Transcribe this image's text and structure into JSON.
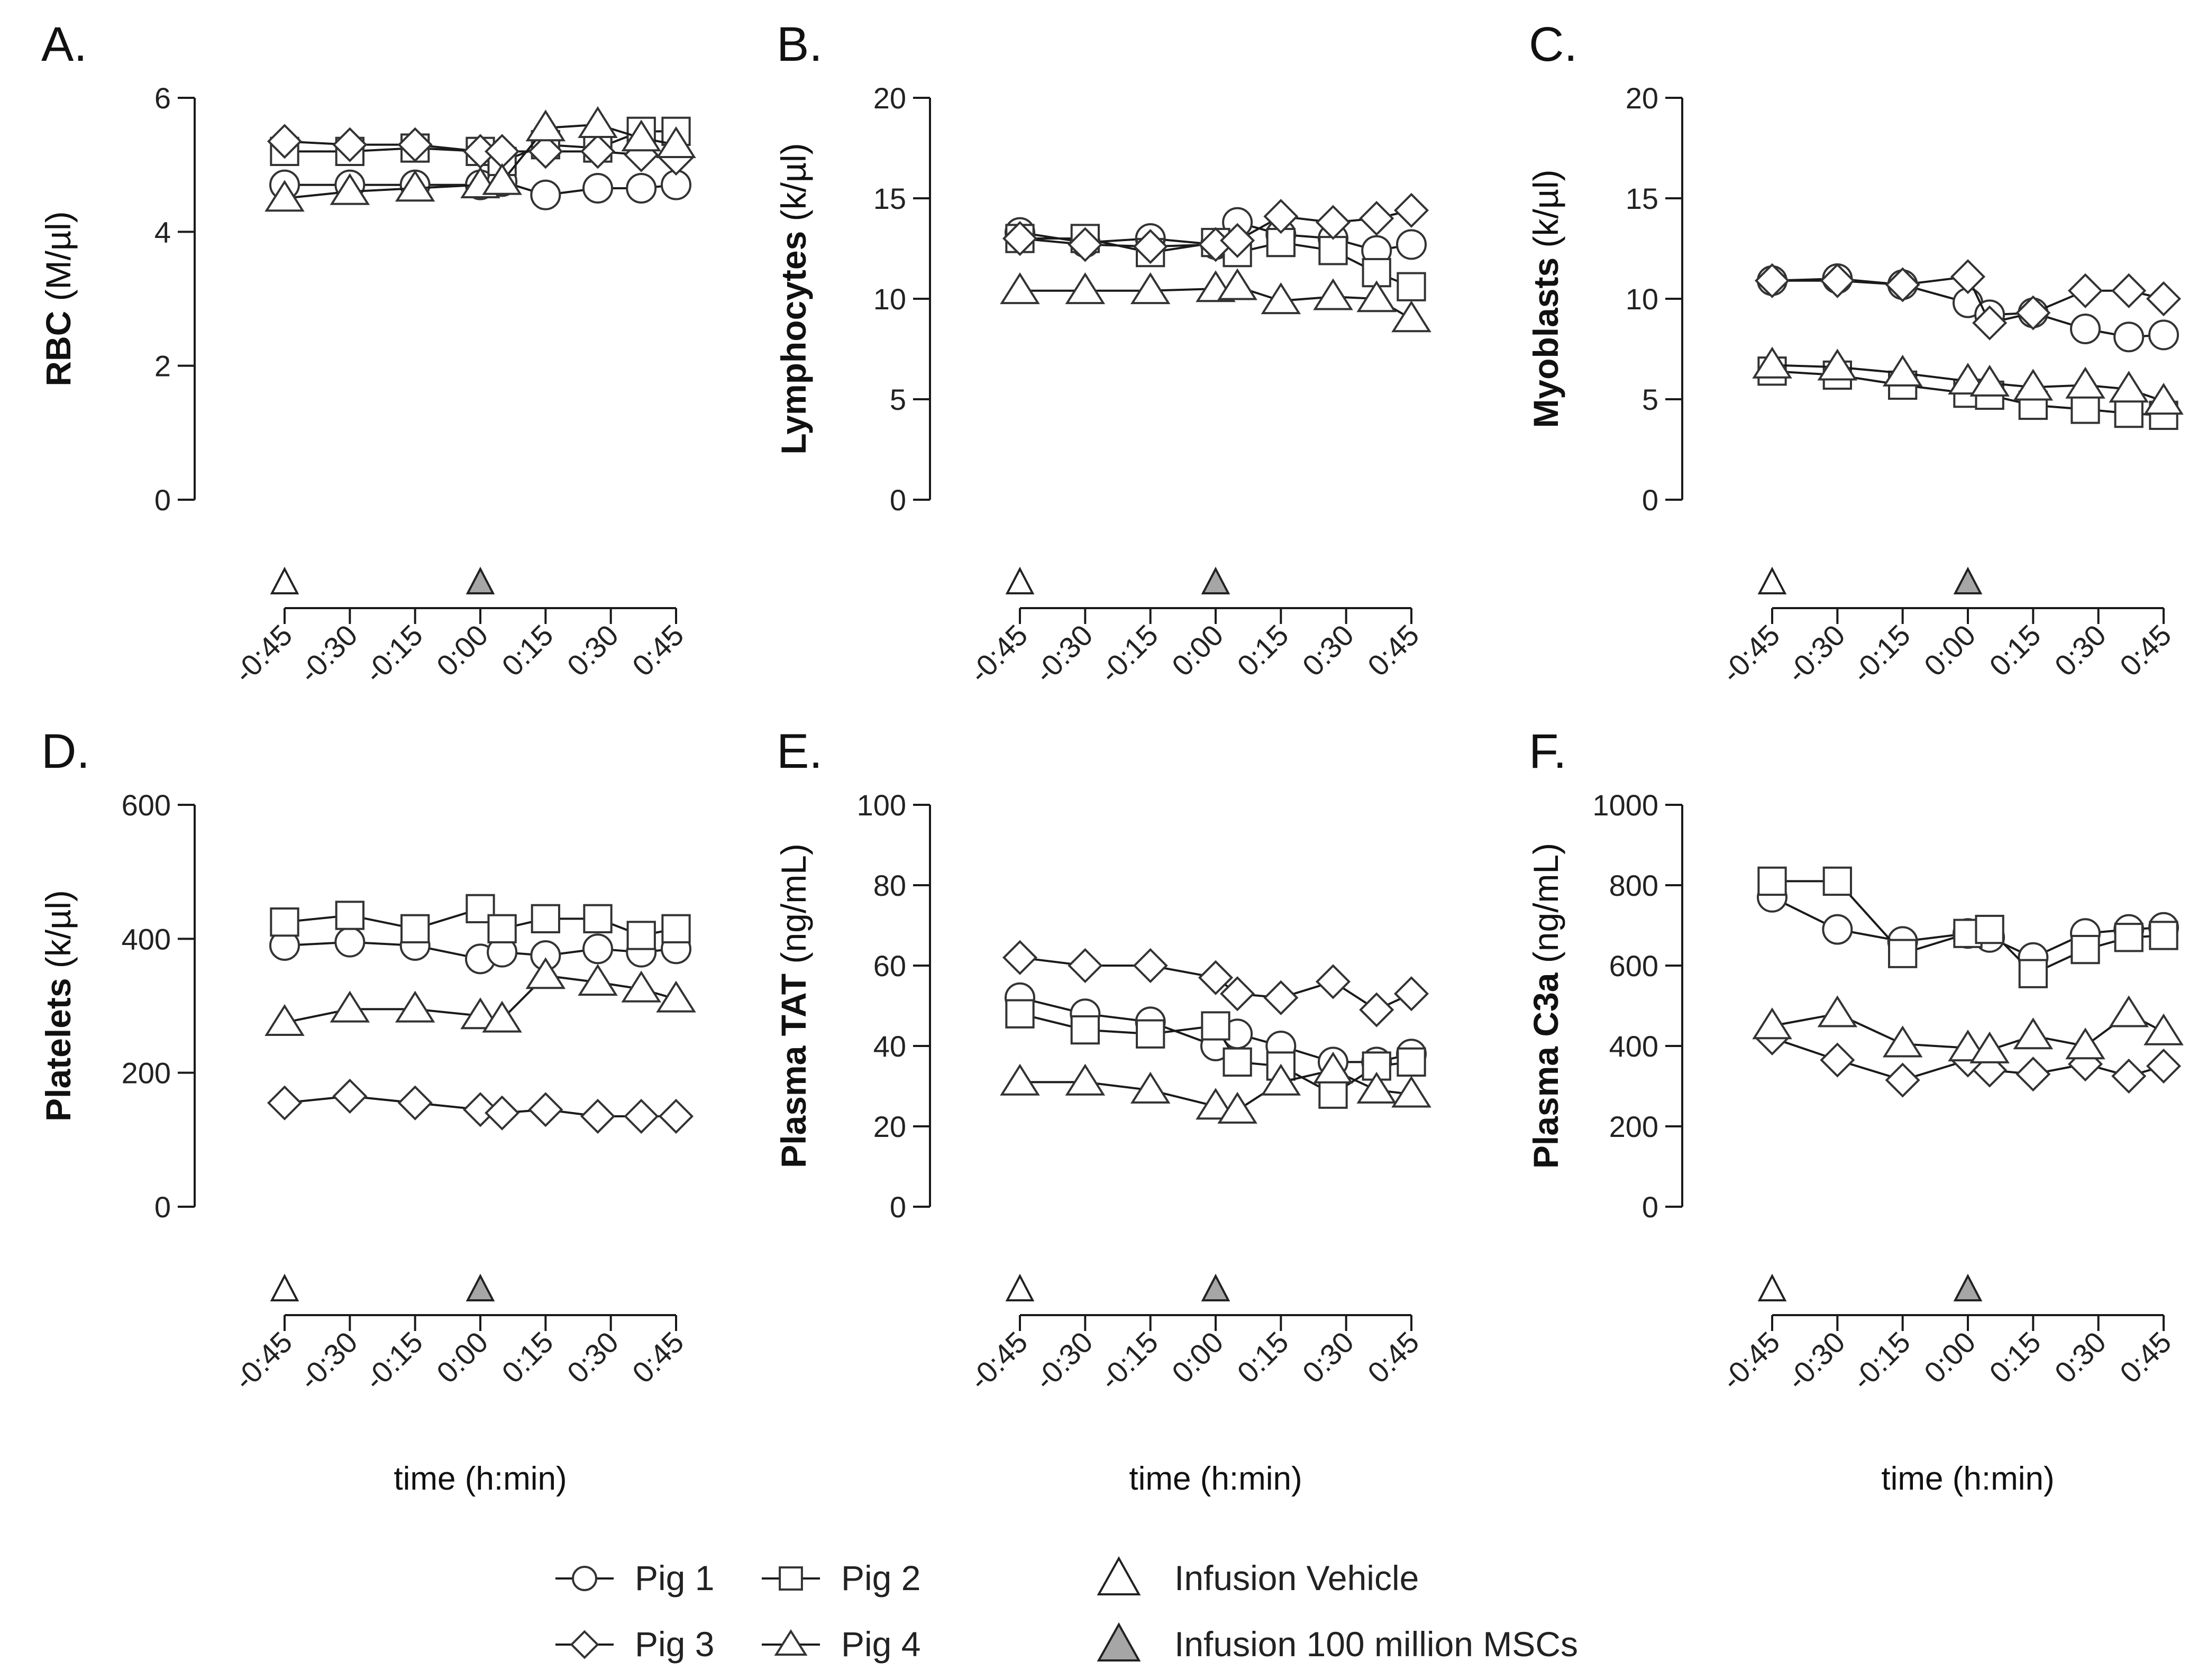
{
  "chart_data": [
    {
      "type": "line",
      "panel": "A.",
      "ylabel_bold": "RBC",
      "ylabel_unit": "(M/µl)",
      "xlabel": "",
      "ylim": [
        0,
        6
      ],
      "yticks": [
        0,
        2,
        4,
        6
      ],
      "x_ticks": [
        "-0:45",
        "-0:30",
        "-0:15",
        "0:00",
        "0:15",
        "0:30",
        "0:45"
      ],
      "x_minutes": [
        -45,
        -30,
        -15,
        0,
        5,
        15,
        27,
        37,
        45
      ],
      "infusion_markers": [
        {
          "name": "Infusion Vehicle",
          "x": -45
        },
        {
          "name": "Infusion 100 million MSCs",
          "x": 0
        }
      ],
      "series": [
        {
          "name": "Pig 1",
          "marker": "circle",
          "values": [
            4.7,
            4.7,
            4.7,
            4.7,
            4.75,
            4.55,
            4.65,
            4.65,
            4.7
          ]
        },
        {
          "name": "Pig 2",
          "marker": "square",
          "values": [
            5.2,
            5.2,
            5.25,
            5.2,
            5.05,
            5.3,
            5.25,
            5.5,
            5.5
          ]
        },
        {
          "name": "Pig 3",
          "marker": "diamond",
          "values": [
            5.35,
            5.3,
            5.3,
            5.2,
            5.2,
            5.2,
            5.2,
            5.15,
            5.1
          ]
        },
        {
          "name": "Pig 4",
          "marker": "triangle",
          "values": [
            4.5,
            4.6,
            4.65,
            4.7,
            4.75,
            5.55,
            5.6,
            5.4,
            5.3
          ]
        }
      ]
    },
    {
      "type": "line",
      "panel": "B.",
      "ylabel_bold": "Lymphocytes",
      "ylabel_unit": "(k/µl)",
      "xlabel": "",
      "ylim": [
        0,
        20
      ],
      "yticks": [
        0,
        5,
        10,
        15,
        20
      ],
      "x_ticks": [
        "-0:45",
        "-0:30",
        "-0:15",
        "0:00",
        "0:15",
        "0:30",
        "0:45"
      ],
      "x_minutes": [
        -45,
        -30,
        -15,
        0,
        5,
        15,
        27,
        37,
        45
      ],
      "infusion_markers": [
        {
          "name": "Infusion Vehicle",
          "x": -45
        },
        {
          "name": "Infusion 100 million MSCs",
          "x": 0
        }
      ],
      "series": [
        {
          "name": "Pig 1",
          "marker": "circle",
          "values": [
            13.3,
            12.8,
            13.0,
            12.7,
            13.8,
            13.2,
            13.0,
            12.4,
            12.7
          ]
        },
        {
          "name": "Pig 2",
          "marker": "square",
          "values": [
            13.0,
            13.0,
            12.3,
            12.8,
            12.3,
            12.8,
            12.4,
            11.3,
            10.6
          ]
        },
        {
          "name": "Pig 3",
          "marker": "diamond",
          "values": [
            13.0,
            12.7,
            12.6,
            12.7,
            12.9,
            14.1,
            13.8,
            14.0,
            14.4
          ]
        },
        {
          "name": "Pig 4",
          "marker": "triangle",
          "values": [
            10.4,
            10.4,
            10.4,
            10.5,
            10.6,
            9.9,
            10.1,
            10.0,
            9.0
          ]
        }
      ]
    },
    {
      "type": "line",
      "panel": "C.",
      "ylabel_bold": "Myoblasts",
      "ylabel_unit": "(k/µl)",
      "xlabel": "",
      "ylim": [
        0,
        20
      ],
      "yticks": [
        0,
        5,
        10,
        15,
        20
      ],
      "x_ticks": [
        "-0:45",
        "-0:30",
        "-0:15",
        "0:00",
        "0:15",
        "0:30",
        "0:45"
      ],
      "x_minutes": [
        -45,
        -30,
        -15,
        0,
        5,
        15,
        27,
        37,
        45
      ],
      "infusion_markers": [
        {
          "name": "Infusion Vehicle",
          "x": -45
        },
        {
          "name": "Infusion 100 million MSCs",
          "x": 0
        }
      ],
      "series": [
        {
          "name": "Pig 1",
          "marker": "circle",
          "values": [
            10.9,
            11.0,
            10.7,
            9.8,
            9.2,
            9.3,
            8.5,
            8.1,
            8.2
          ]
        },
        {
          "name": "Pig 2",
          "marker": "square",
          "values": [
            6.4,
            6.2,
            5.7,
            5.3,
            5.2,
            4.7,
            4.5,
            4.3,
            4.2
          ]
        },
        {
          "name": "Pig 3",
          "marker": "diamond",
          "values": [
            10.9,
            10.9,
            10.7,
            11.1,
            8.8,
            9.3,
            10.4,
            10.4,
            10.0
          ]
        },
        {
          "name": "Pig 4",
          "marker": "triangle",
          "values": [
            6.7,
            6.6,
            6.3,
            5.9,
            5.8,
            5.6,
            5.7,
            5.5,
            4.9
          ]
        }
      ]
    },
    {
      "type": "line",
      "panel": "D.",
      "ylabel_bold": "Platelets",
      "ylabel_unit": "(k/µl)",
      "xlabel": "time (h:min)",
      "ylim": [
        0,
        600
      ],
      "yticks": [
        0,
        200,
        400,
        600
      ],
      "x_ticks": [
        "-0:45",
        "-0:30",
        "-0:15",
        "0:00",
        "0:15",
        "0:30",
        "0:45"
      ],
      "x_minutes": [
        -45,
        -30,
        -15,
        0,
        5,
        15,
        27,
        37,
        45
      ],
      "infusion_markers": [
        {
          "name": "Infusion Vehicle",
          "x": -45
        },
        {
          "name": "Infusion 100 million MSCs",
          "x": 0
        }
      ],
      "series": [
        {
          "name": "Pig 1",
          "marker": "circle",
          "values": [
            390,
            395,
            390,
            370,
            380,
            375,
            385,
            380,
            385
          ]
        },
        {
          "name": "Pig 2",
          "marker": "square",
          "values": [
            425,
            435,
            415,
            445,
            415,
            430,
            430,
            405,
            415
          ]
        },
        {
          "name": "Pig 3",
          "marker": "diamond",
          "values": [
            155,
            165,
            155,
            145,
            140,
            145,
            135,
            135,
            135
          ]
        },
        {
          "name": "Pig 4",
          "marker": "triangle",
          "values": [
            275,
            295,
            295,
            285,
            280,
            345,
            335,
            325,
            310
          ]
        }
      ]
    },
    {
      "type": "line",
      "panel": "E.",
      "ylabel_bold": "Plasma TAT",
      "ylabel_unit": "(ng/mL)",
      "xlabel": "time (h:min)",
      "ylim": [
        0,
        100
      ],
      "yticks": [
        0,
        20,
        40,
        60,
        80,
        100
      ],
      "x_ticks": [
        "-0:45",
        "-0:30",
        "-0:15",
        "0:00",
        "0:15",
        "0:30",
        "0:45"
      ],
      "x_minutes": [
        -45,
        -30,
        -15,
        0,
        5,
        15,
        27,
        37,
        45
      ],
      "infusion_markers": [
        {
          "name": "Infusion Vehicle",
          "x": -45
        },
        {
          "name": "Infusion 100 million MSCs",
          "x": 0
        }
      ],
      "series": [
        {
          "name": "Pig 1",
          "marker": "circle",
          "values": [
            52,
            48,
            46,
            40,
            43,
            40,
            36,
            36,
            38
          ]
        },
        {
          "name": "Pig 2",
          "marker": "square",
          "values": [
            48,
            44,
            43,
            45,
            36,
            35,
            28,
            35,
            36
          ]
        },
        {
          "name": "Pig 3",
          "marker": "diamond",
          "values": [
            62,
            60,
            60,
            57,
            53,
            52,
            56,
            49,
            53
          ]
        },
        {
          "name": "Pig 4",
          "marker": "triangle",
          "values": [
            31,
            31,
            29,
            25,
            24,
            31,
            34,
            29,
            28
          ]
        }
      ]
    },
    {
      "type": "line",
      "panel": "F.",
      "ylabel_bold": "Plasma C3a",
      "ylabel_unit": "(ng/mL)",
      "xlabel": "time (h:min)",
      "ylim": [
        0,
        1000
      ],
      "yticks": [
        0,
        200,
        400,
        600,
        800,
        1000
      ],
      "x_ticks": [
        "-0:45",
        "-0:30",
        "-0:15",
        "0:00",
        "0:15",
        "0:30",
        "0:45"
      ],
      "x_minutes": [
        -45,
        -30,
        -15,
        0,
        5,
        15,
        27,
        37,
        45
      ],
      "infusion_markers": [
        {
          "name": "Infusion Vehicle",
          "x": -45
        },
        {
          "name": "Infusion 100 million MSCs",
          "x": 0
        }
      ],
      "series": [
        {
          "name": "Pig 1",
          "marker": "circle",
          "values": [
            770,
            690,
            660,
            680,
            670,
            620,
            680,
            690,
            695
          ]
        },
        {
          "name": "Pig 2",
          "marker": "square",
          "values": [
            810,
            810,
            630,
            680,
            690,
            580,
            640,
            670,
            675
          ]
        },
        {
          "name": "Pig 3",
          "marker": "diamond",
          "values": [
            420,
            365,
            315,
            365,
            340,
            330,
            355,
            325,
            350
          ]
        },
        {
          "name": "Pig 4",
          "marker": "triangle",
          "values": [
            450,
            480,
            405,
            395,
            390,
            425,
            400,
            480,
            435
          ]
        }
      ]
    }
  ],
  "legend": {
    "series": [
      {
        "label": "Pig 1",
        "marker": "circle"
      },
      {
        "label": "Pig 2",
        "marker": "square"
      },
      {
        "label": "Pig 3",
        "marker": "diamond"
      },
      {
        "label": "Pig 4",
        "marker": "triangle"
      }
    ],
    "infusions": [
      {
        "label": "Infusion Vehicle",
        "fill": "#ffffff"
      },
      {
        "label": "Infusion 100 million MSCs",
        "fill": "#a6a6a6"
      }
    ]
  },
  "colors": {
    "line": "#1a1a1a",
    "marker_stroke": "#333333",
    "marker_fill": "#ffffff",
    "filled_triangle": "#a6a6a6"
  }
}
